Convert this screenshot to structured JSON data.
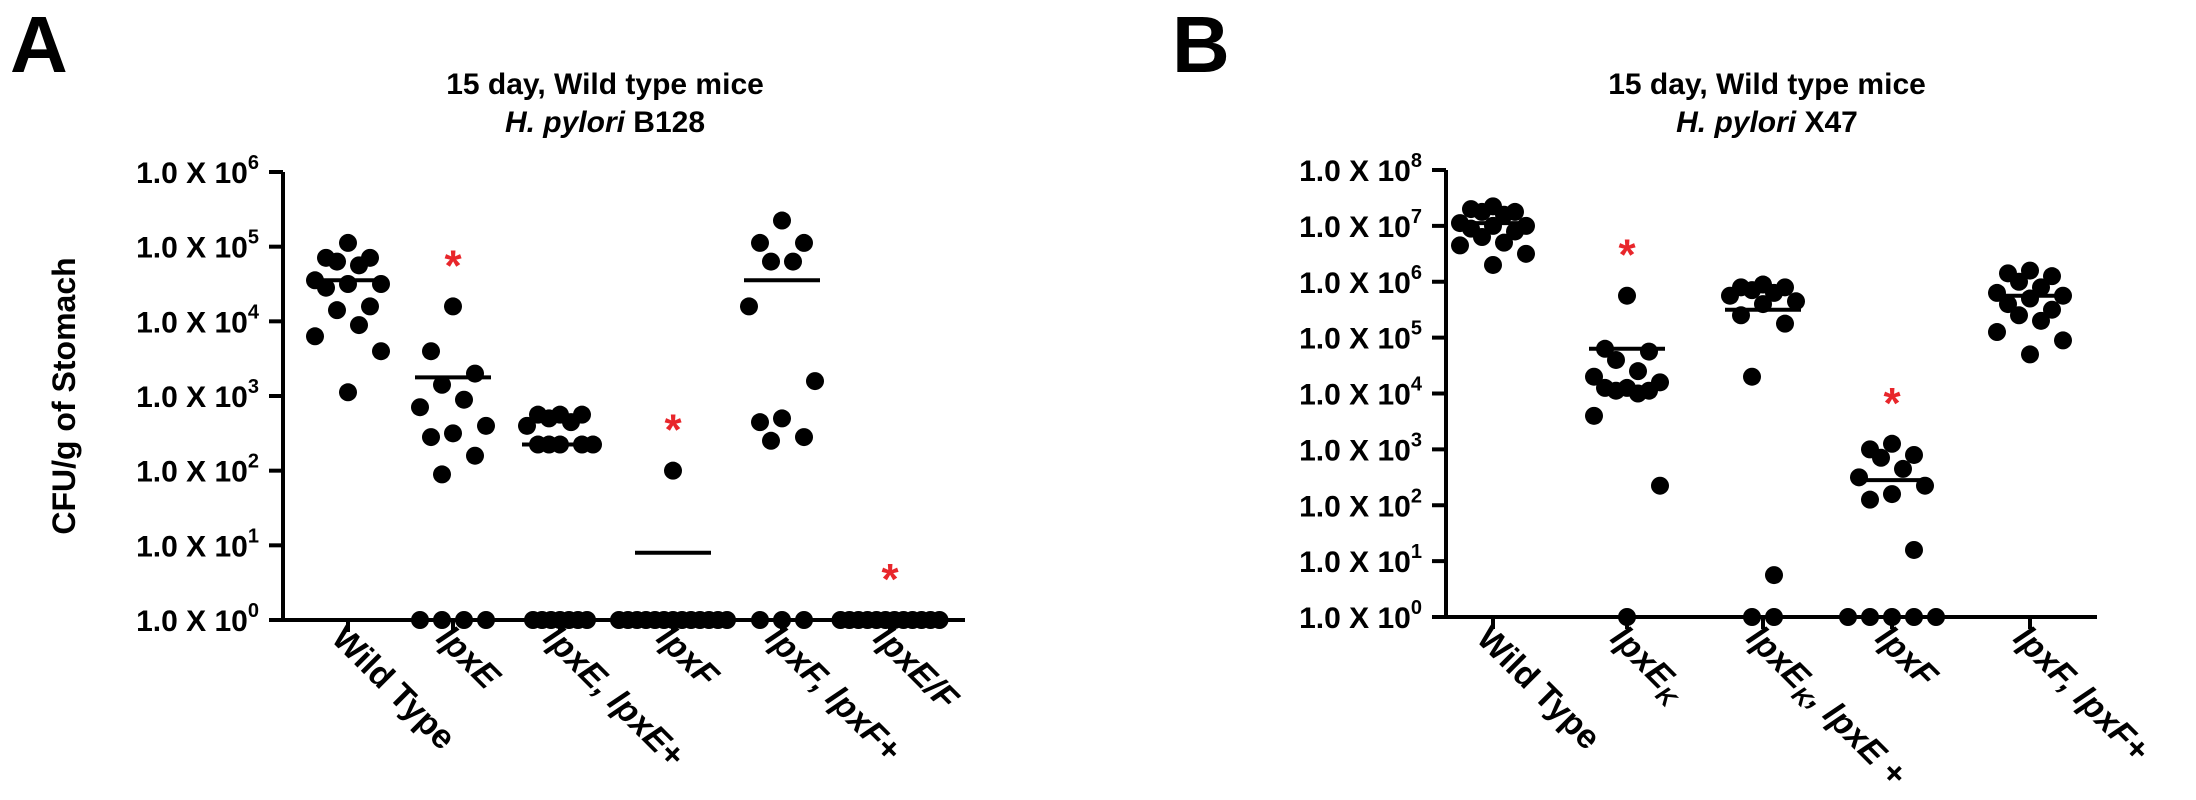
{
  "chart_data": [
    {
      "panel": "A",
      "type": "scatter",
      "title": "15 day, Wild type mice",
      "subtitle_italic": "H. pylori",
      "subtitle_rest": " B128",
      "ylabel": "CFU/g of Stomach",
      "yscale": "log",
      "ylim_exp": [
        0,
        6
      ],
      "yticks": [
        {
          "base": "1.0 X 10",
          "exp": "0"
        },
        {
          "base": "1.0 X 10",
          "exp": "1"
        },
        {
          "base": "1.0 X 10",
          "exp": "2"
        },
        {
          "base": "1.0 X 10",
          "exp": "3"
        },
        {
          "base": "1.0 X 10",
          "exp": "4"
        },
        {
          "base": "1.0 X 10",
          "exp": "5"
        },
        {
          "base": "1.0 X 10",
          "exp": "6"
        }
      ],
      "categories": [
        {
          "italic": "",
          "plain": "Wild Type",
          "sub": "",
          "suffix": ""
        },
        {
          "italic": "lpxE",
          "plain": "",
          "sub": "",
          "suffix": ""
        },
        {
          "italic": "lpxE, lpxE",
          "plain": "",
          "sub": "",
          "suffix": "+"
        },
        {
          "italic": "lpxF",
          "plain": "",
          "sub": "",
          "suffix": ""
        },
        {
          "italic": "lpxF, lpxF",
          "plain": "",
          "sub": "",
          "suffix": "+"
        },
        {
          "italic": "lpxE/F",
          "plain": "",
          "sub": "",
          "suffix": ""
        }
      ],
      "points_log10": [
        [
          5.05,
          4.85,
          4.85,
          4.8,
          4.75,
          4.55,
          4.5,
          4.5,
          4.45,
          4.2,
          4.15,
          3.95,
          3.8,
          3.6,
          3.05
        ],
        [
          4.2,
          3.6,
          3.3,
          3.15,
          2.95,
          2.85,
          2.6,
          2.5,
          2.45,
          2.2,
          1.95,
          0,
          0,
          0,
          0
        ],
        [
          2.75,
          2.75,
          2.75,
          2.7,
          2.65,
          2.6,
          2.35,
          2.35,
          2.35,
          2.35,
          2.35,
          0,
          0,
          0,
          0,
          0,
          0,
          0
        ],
        [
          2.0,
          0,
          0,
          0,
          0,
          0,
          0,
          0,
          0,
          0,
          0,
          0,
          0,
          0
        ],
        [
          5.35,
          5.05,
          5.05,
          4.8,
          4.8,
          4.2,
          3.2,
          2.7,
          2.65,
          2.45,
          2.4,
          0,
          0,
          0
        ],
        [
          0,
          0,
          0,
          0,
          0,
          0,
          0,
          0,
          0,
          0,
          0,
          0
        ]
      ],
      "mean_log10": [
        4.55,
        3.25,
        2.35,
        0.9,
        4.55,
        0
      ],
      "significance": [
        "",
        "*",
        "",
        "*",
        "",
        "*"
      ],
      "significance_color": "#e8262b"
    },
    {
      "panel": "B",
      "type": "scatter",
      "title": "15 day, Wild type mice",
      "subtitle_italic": "H. pylori",
      "subtitle_rest": " X47",
      "ylabel": "",
      "yscale": "log",
      "ylim_exp": [
        0,
        8
      ],
      "yticks": [
        {
          "base": "1.0 X 10",
          "exp": "0"
        },
        {
          "base": "1.0 X 10",
          "exp": "1"
        },
        {
          "base": "1.0 X 10",
          "exp": "2"
        },
        {
          "base": "1.0 X 10",
          "exp": "3"
        },
        {
          "base": "1.0 X 10",
          "exp": "4"
        },
        {
          "base": "1.0 X 10",
          "exp": "5"
        },
        {
          "base": "1.0 X 10",
          "exp": "6"
        },
        {
          "base": "1.0 X 10",
          "exp": "7"
        },
        {
          "base": "1.0 X 10",
          "exp": "8"
        }
      ],
      "categories": [
        {
          "italic": "",
          "plain": "Wild Type",
          "sub": "",
          "suffix": ""
        },
        {
          "italic": "lpxE",
          "plain": "",
          "sub": "K",
          "suffix": ""
        },
        {
          "italic": "lpxE",
          "plain": "",
          "sub": "K",
          "suffix": ", lpxE +"
        },
        {
          "italic": "lpxF",
          "plain": "",
          "sub": "",
          "suffix": ""
        },
        {
          "italic": "lpxF, lpxF",
          "plain": "",
          "sub": "",
          "suffix": "+"
        }
      ],
      "points_log10": [
        [
          7.35,
          7.3,
          7.25,
          7.25,
          7.2,
          7.05,
          7.0,
          7.0,
          6.95,
          6.9,
          6.8,
          6.7,
          6.65,
          6.5,
          6.3
        ],
        [
          5.75,
          4.8,
          4.75,
          4.6,
          4.4,
          4.3,
          4.2,
          4.1,
          4.1,
          4.05,
          4.05,
          4.0,
          3.6,
          2.35,
          0
        ],
        [
          5.95,
          5.9,
          5.9,
          5.85,
          5.8,
          5.75,
          5.65,
          5.6,
          5.4,
          5.25,
          4.3,
          0.75,
          0,
          0
        ],
        [
          3.1,
          3.0,
          2.9,
          2.85,
          2.65,
          2.5,
          2.35,
          2.2,
          2.1,
          1.2,
          0,
          0,
          0,
          0,
          0
        ],
        [
          6.2,
          6.15,
          6.1,
          6.0,
          5.9,
          5.8,
          5.75,
          5.7,
          5.6,
          5.5,
          5.4,
          5.3,
          5.1,
          4.95,
          4.7
        ],
        []
      ],
      "mean_log10": [
        7.05,
        4.8,
        5.5,
        2.45,
        5.75
      ],
      "significance": [
        "",
        "*",
        "",
        "*",
        ""
      ],
      "significance_color": "#e8262b"
    }
  ]
}
